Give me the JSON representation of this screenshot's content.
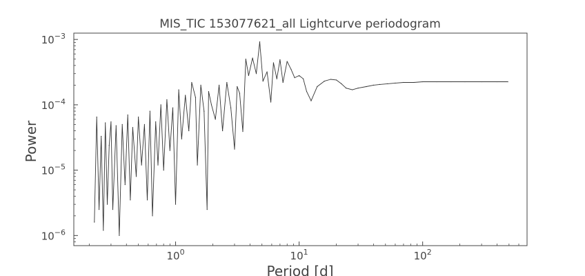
{
  "chart_data": {
    "type": "line",
    "title": "MIS_TIC 153077621_all Lightcurve periodogram",
    "xlabel": "Period [d]",
    "ylabel": "Power",
    "xscale": "log",
    "yscale": "log",
    "xlim": [
      0.15,
      700
    ],
    "ylim": [
      7e-07,
      0.00125
    ],
    "grid": false,
    "legend": "none",
    "line_color": "#333333",
    "x_ticks": [
      {
        "value": 1,
        "base": "10",
        "exp": "0"
      },
      {
        "value": 10,
        "base": "10",
        "exp": "1"
      },
      {
        "value": 100,
        "base": "10",
        "exp": "2"
      }
    ],
    "y_ticks": [
      {
        "value": 1e-06,
        "base": "10",
        "exp": "−6"
      },
      {
        "value": 1e-05,
        "base": "10",
        "exp": "−5"
      },
      {
        "value": 0.0001,
        "base": "10",
        "exp": "−4"
      },
      {
        "value": 0.001,
        "base": "10",
        "exp": "−3"
      }
    ],
    "series": [
      {
        "x": [
          0.22,
          0.23,
          0.24,
          0.25,
          0.26,
          0.27,
          0.28,
          0.29,
          0.3,
          0.31,
          0.33,
          0.35,
          0.37,
          0.39,
          0.41,
          0.43,
          0.45,
          0.48,
          0.5,
          0.53,
          0.56,
          0.59,
          0.62,
          0.65,
          0.69,
          0.72,
          0.76,
          0.8,
          0.85,
          0.9,
          0.95,
          1.0,
          1.06,
          1.12,
          1.2,
          1.28,
          1.35,
          1.45,
          1.5,
          1.6,
          1.7,
          1.8,
          1.85,
          1.95,
          2.1,
          2.25,
          2.4,
          2.6,
          2.8,
          3.0,
          3.15,
          3.3,
          3.5,
          3.7,
          3.9,
          4.2,
          4.5,
          4.8,
          5.1,
          5.5,
          5.9,
          6.2,
          6.6,
          7.0,
          7.4,
          8.0,
          8.6,
          9.2,
          10.0,
          10.8,
          11.5,
          12.5,
          14.0,
          16.0,
          18.0,
          20.0,
          22.0,
          24.0,
          27.0,
          30.0,
          35.0,
          40.0,
          45.0,
          52.0,
          60.0,
          70.0,
          85.0,
          100.0,
          130.0,
          170.0,
          220.0,
          300.0,
          400.0,
          490.0
        ],
        "y": [
          1.6e-06,
          6.5e-05,
          2.5e-06,
          3.3e-05,
          1.2e-06,
          5.3e-05,
          3e-06,
          2.4e-05,
          5.5e-05,
          2.5e-06,
          4.8e-05,
          1e-06,
          5e-05,
          6e-06,
          7e-05,
          3.5e-06,
          4.5e-05,
          8e-06,
          6.5e-05,
          1.2e-05,
          5e-05,
          3.5e-06,
          8e-05,
          2e-06,
          5.5e-05,
          1.2e-05,
          0.0001,
          1e-05,
          0.00012,
          2e-05,
          9e-05,
          3e-06,
          0.00017,
          3e-05,
          0.00014,
          4e-05,
          0.00022,
          0.00013,
          1.2e-05,
          0.0002,
          8e-05,
          2.5e-06,
          0.00016,
          0.0001,
          6e-05,
          0.0002,
          4e-05,
          0.00022,
          9e-05,
          2.1e-05,
          0.00019,
          0.00015,
          3.9e-05,
          0.0005,
          0.00028,
          0.00052,
          0.0003,
          0.00092,
          0.00023,
          0.00032,
          0.00011,
          0.00044,
          0.00025,
          0.00049,
          0.00022,
          0.00046,
          0.00035,
          0.00026,
          0.00028,
          0.00025,
          0.00016,
          0.000115,
          0.00019,
          0.00023,
          0.000245,
          0.00024,
          0.00021,
          0.00018,
          0.00017,
          0.00018,
          0.00019,
          0.0002,
          0.000205,
          0.00021,
          0.000215,
          0.00022,
          0.00022,
          0.000225,
          0.000225,
          0.000225,
          0.000225,
          0.000225,
          0.000225,
          0.000225
        ]
      }
    ]
  }
}
